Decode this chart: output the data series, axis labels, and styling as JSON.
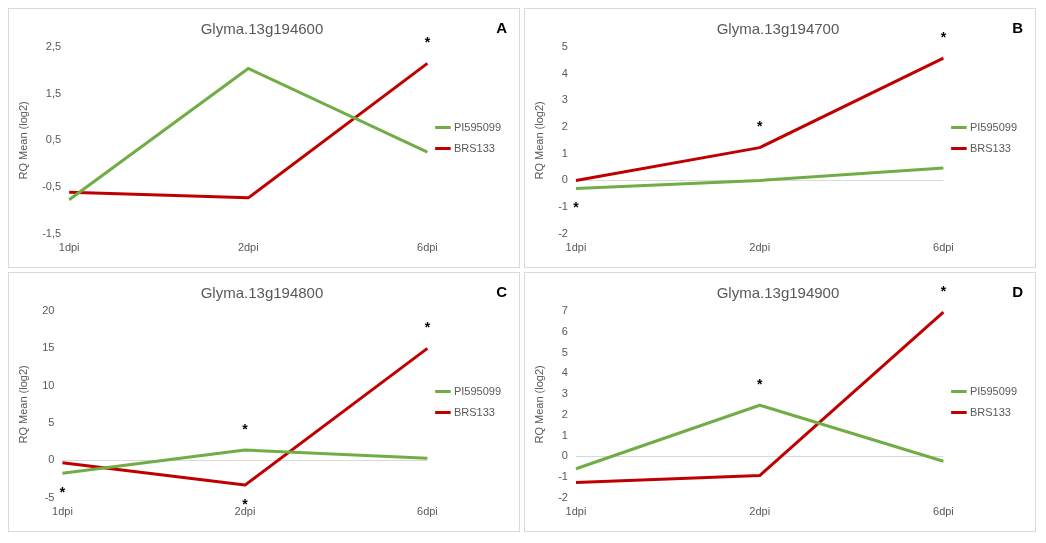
{
  "chart_data": [
    {
      "type": "line",
      "title": "Glyma.13g194600",
      "ylabel": "RQ Mean (log2)",
      "categories": [
        "1dpi",
        "2dpi",
        "6dpi"
      ],
      "series": [
        {
          "name": "PI595099",
          "color": "#70ad47",
          "values": [
            -0.77,
            2.04,
            0.25
          ]
        },
        {
          "name": "BRS133",
          "color": "#c00000",
          "values": [
            -0.61,
            -0.73,
            2.15
          ]
        }
      ],
      "ylim": [
        -1.5,
        2.5
      ],
      "yticks": [
        {
          "value": -1.5,
          "label": "-1,5"
        },
        {
          "value": -0.5,
          "label": "-0,5"
        },
        {
          "value": 0.5,
          "label": "0,5"
        },
        {
          "value": 1.5,
          "label": "1,5"
        },
        {
          "value": 2.5,
          "label": "2,5"
        }
      ],
      "legend": "right",
      "marker": "none",
      "line_style": "solid",
      "annotations": [
        "A",
        {
          "text": "*",
          "x": "6dpi",
          "y": 2.15
        }
      ]
    },
    {
      "type": "line",
      "title": "Glyma.13g194700",
      "ylabel": "RQ Mean (log2)",
      "categories": [
        "1dpi",
        "2dpi",
        "6dpi"
      ],
      "series": [
        {
          "name": "PI595099",
          "color": "#70ad47",
          "values": [
            -0.3,
            0,
            0.47
          ]
        },
        {
          "name": "BRS133",
          "color": "#c00000",
          "values": [
            0,
            1.23,
            4.58
          ]
        }
      ],
      "ylim": [
        -2,
        5
      ],
      "yticks": [
        -2,
        -1,
        0,
        1,
        2,
        3,
        4,
        5
      ],
      "legend": "right",
      "marker": "none",
      "line_style": "solid",
      "annotations": [
        "B",
        {
          "text": "*",
          "x": "1dpi",
          "y": -0.3
        },
        {
          "text": "*",
          "x": "2dpi",
          "y": 1.23
        },
        {
          "text": "*",
          "x": "6dpi",
          "y": 4.58
        }
      ]
    },
    {
      "type": "line",
      "title": "Glyma.13g194800",
      "ylabel": "RQ Mean (log2)",
      "categories": [
        "1dpi",
        "2dpi",
        "6dpi"
      ],
      "series": [
        {
          "name": "PI595099",
          "color": "#70ad47",
          "values": [
            -1.7,
            1.4,
            0.3
          ]
        },
        {
          "name": "BRS133",
          "color": "#c00000",
          "values": [
            -0.3,
            -3.3,
            15
          ]
        }
      ],
      "ylim": [
        -5,
        20
      ],
      "yticks": [
        -5,
        0,
        5,
        10,
        15,
        20
      ],
      "legend": "right",
      "marker": "none",
      "line_style": "solid",
      "annotations": [
        "C",
        {
          "text": "*",
          "x": "1dpi",
          "y": -1.7
        },
        {
          "text": "*",
          "x": "2dpi",
          "y": 1.4
        },
        {
          "text": "*",
          "x": "2dpi",
          "y": -3.3
        },
        {
          "text": "*",
          "x": "6dpi",
          "y": 15
        }
      ]
    },
    {
      "type": "line",
      "title": "Glyma.13g194900",
      "ylabel": "RQ Mean (log2)",
      "categories": [
        "1dpi",
        "2dpi",
        "6dpi"
      ],
      "series": [
        {
          "name": "PI595099",
          "color": "#70ad47",
          "values": [
            -0.6,
            2.46,
            -0.24
          ]
        },
        {
          "name": "BRS133",
          "color": "#c00000",
          "values": [
            -1.26,
            -0.93,
            6.94
          ]
        }
      ],
      "ylim": [
        -2,
        7
      ],
      "yticks": [
        -2,
        -1,
        0,
        1,
        2,
        3,
        4,
        5,
        6,
        7
      ],
      "legend": "right",
      "marker": "none",
      "line_style": "solid",
      "annotations": [
        "D",
        {
          "text": "*",
          "x": "2dpi",
          "y": 2.46
        },
        {
          "text": "*",
          "x": "6dpi",
          "y": 6.94
        }
      ]
    }
  ]
}
